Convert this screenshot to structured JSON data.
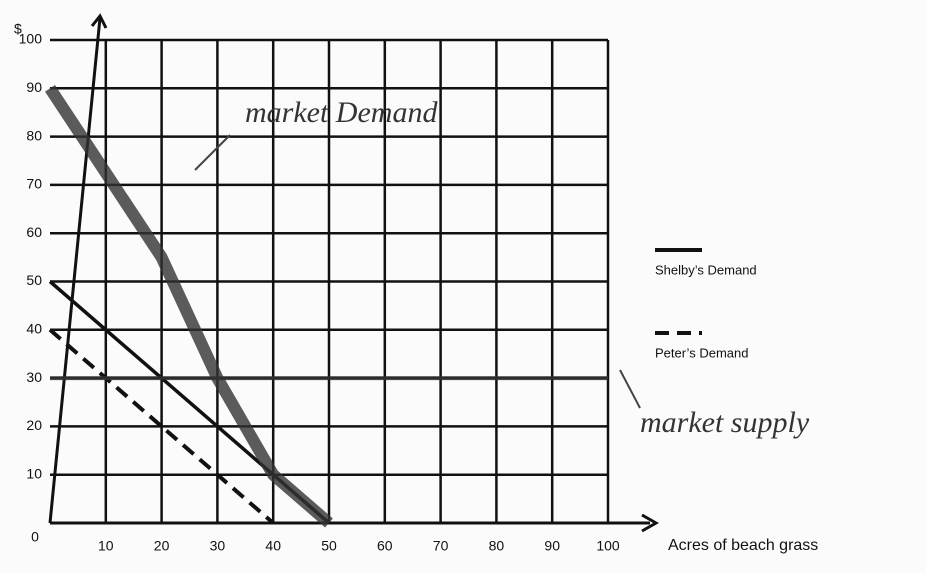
{
  "chart_data": {
    "type": "line",
    "y_label": "$",
    "x_label": "Acres of beach grass",
    "xlim": [
      0,
      100
    ],
    "ylim": [
      0,
      100
    ],
    "xticks": [
      10,
      20,
      30,
      40,
      50,
      60,
      70,
      80,
      90,
      100
    ],
    "yticks": [
      0,
      10,
      20,
      30,
      40,
      50,
      60,
      70,
      80,
      90,
      100
    ],
    "grid": true,
    "series": [
      {
        "name": "Shelby’s Demand",
        "color": "#111111",
        "style": "solid",
        "x": [
          0,
          50
        ],
        "values": [
          50,
          0
        ]
      },
      {
        "name": "Peter’s Demand",
        "color": "#111111",
        "style": "dashed",
        "x": [
          0,
          40
        ],
        "values": [
          40,
          0
        ]
      },
      {
        "name": "market Demand",
        "color": "#333333",
        "style": "handwritten",
        "x": [
          0,
          20,
          30,
          40,
          50
        ],
        "values": [
          90,
          55,
          30,
          10,
          0
        ]
      },
      {
        "name": "market supply",
        "color": "#333333",
        "style": "handwritten",
        "x": [
          0,
          100
        ],
        "values": [
          30,
          30
        ]
      }
    ]
  }
}
